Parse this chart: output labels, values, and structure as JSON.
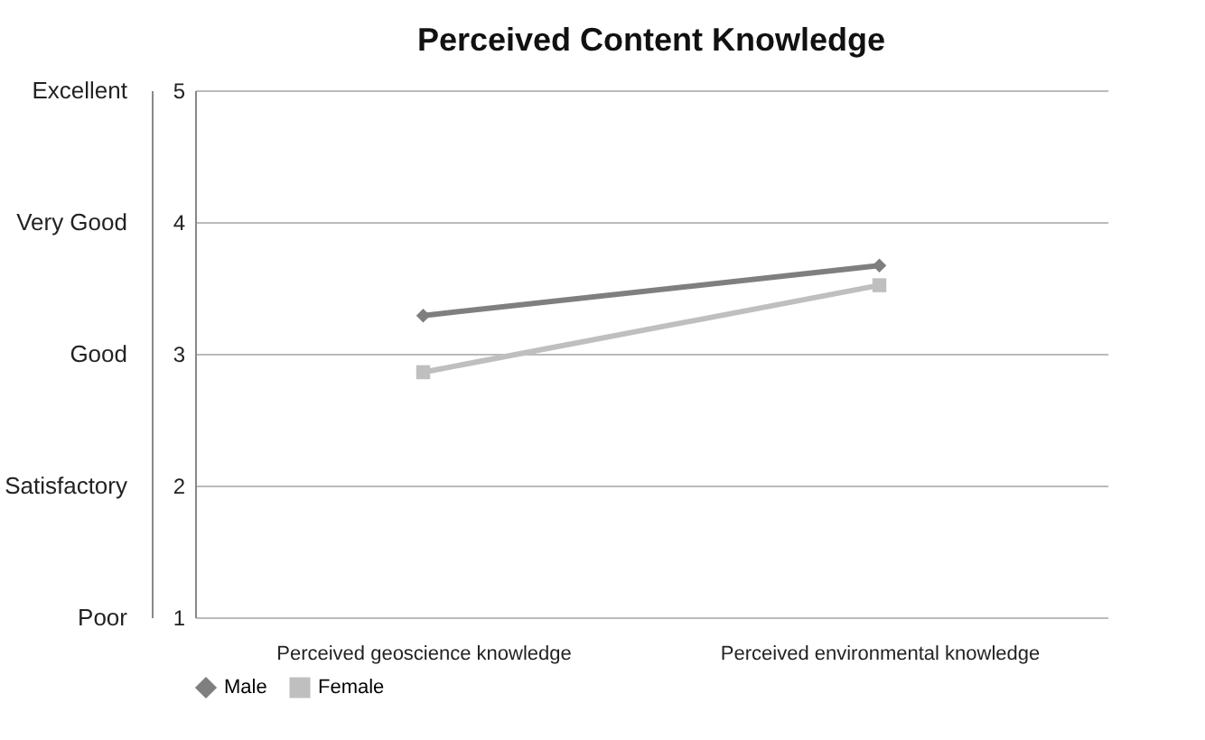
{
  "chart_data": {
    "type": "line",
    "title": "Perceived Content Knowledge",
    "categories": [
      "Perceived geoscience knowledge",
      "Perceived environmental knowledge"
    ],
    "series": [
      {
        "name": "Male",
        "color": "#7f7f7f",
        "marker": "diamond",
        "values": [
          3.29,
          3.67
        ]
      },
      {
        "name": "Female",
        "color": "#bfbfbf",
        "marker": "square",
        "values": [
          2.86,
          3.52
        ]
      }
    ],
    "ylim": [
      1,
      5
    ],
    "yticks": [
      1,
      2,
      3,
      4,
      5
    ],
    "y2_categories": [
      "Excellent",
      "Very Good",
      "Good",
      "Satisfactory",
      "Poor"
    ],
    "grid": "y",
    "legend": "bottom"
  }
}
